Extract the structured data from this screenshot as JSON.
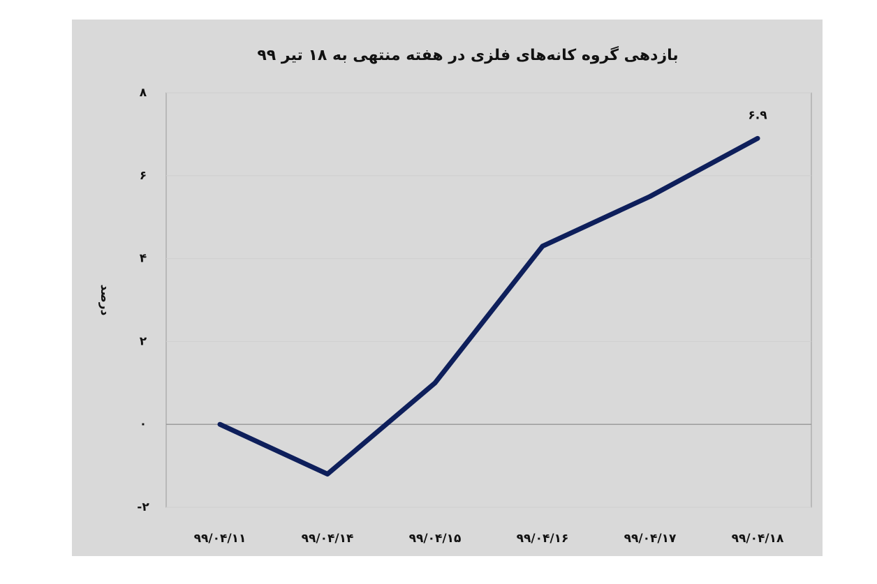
{
  "chart_data": {
    "type": "line",
    "title": "بازدهی گروه کانه‌های فلزی در هفته منتهی به ۱۸ تیر ۹۹",
    "y_label": "درصد",
    "categories": [
      "۹۹/۰۴/۱۱",
      "۹۹/۰۴/۱۴",
      "۹۹/۰۴/۱۵",
      "۹۹/۰۴/۱۶",
      "۹۹/۰۴/۱۷",
      "۹۹/۰۴/۱۸"
    ],
    "series": [
      {
        "name": "بازدهی",
        "color": "#0e1f5b",
        "values": [
          0,
          -1.2,
          1.0,
          4.3,
          5.5,
          6.9
        ],
        "value_labels": [
          null,
          null,
          null,
          null,
          null,
          "۶.۹"
        ]
      }
    ],
    "ylim": [
      -2,
      8
    ],
    "yticks": [
      {
        "value": -2,
        "label": "-۲"
      },
      {
        "value": 0,
        "label": "۰"
      },
      {
        "value": 2,
        "label": "۲"
      },
      {
        "value": 4,
        "label": "۴"
      },
      {
        "value": 6,
        "label": "۶"
      },
      {
        "value": 8,
        "label": "۸"
      }
    ],
    "grid": true
  }
}
